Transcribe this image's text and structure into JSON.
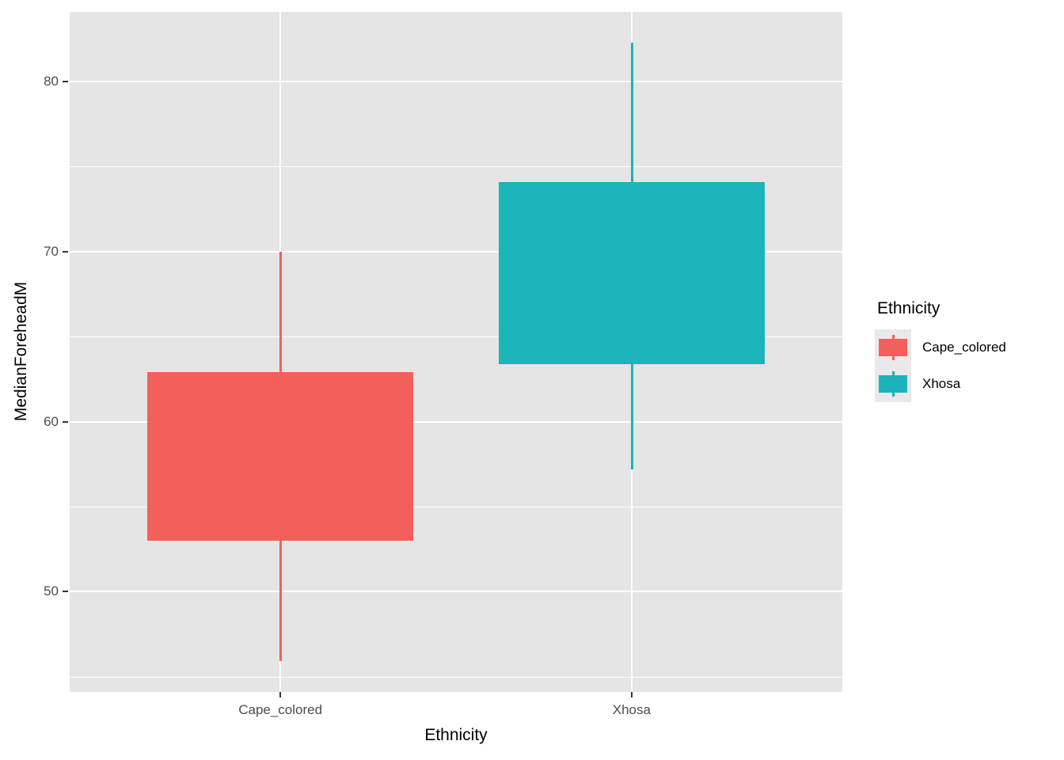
{
  "chart_data": {
    "type": "boxplot",
    "title": "",
    "xlabel": "Ethnicity",
    "ylabel": "MedianForeheadM",
    "categories": [
      "Cape_colored",
      "Xhosa"
    ],
    "series": [
      {
        "name": "Cape_colored",
        "color": "#F3605B",
        "whisker_low": 45.9,
        "q1": 53.0,
        "q3": 62.9,
        "whisker_high": 70.0
      },
      {
        "name": "Xhosa",
        "color": "#1AB4BA",
        "whisker_low": 57.2,
        "q1": 63.4,
        "q3": 74.1,
        "whisker_high": 82.3
      }
    ],
    "median_lines_visible": false,
    "y_ticks": [
      50,
      60,
      70,
      80
    ],
    "y_minor_gridlines": [
      45,
      55,
      65,
      75
    ],
    "ylim": [
      44.1,
      84.1
    ],
    "grid": true,
    "legend_position": "right",
    "legend": {
      "title": "Ethnicity",
      "entries": [
        {
          "label": "Cape_colored",
          "color": "#F3605B"
        },
        {
          "label": "Xhosa",
          "color": "#1AB4BA"
        }
      ]
    }
  },
  "colors": {
    "panel_bg": "#E5E5E5",
    "gridline": "#FFFFFF",
    "tick_text": "#4D4D4D",
    "tick_mark": "#333333",
    "legend_key_bg": "#E9E9E9"
  }
}
